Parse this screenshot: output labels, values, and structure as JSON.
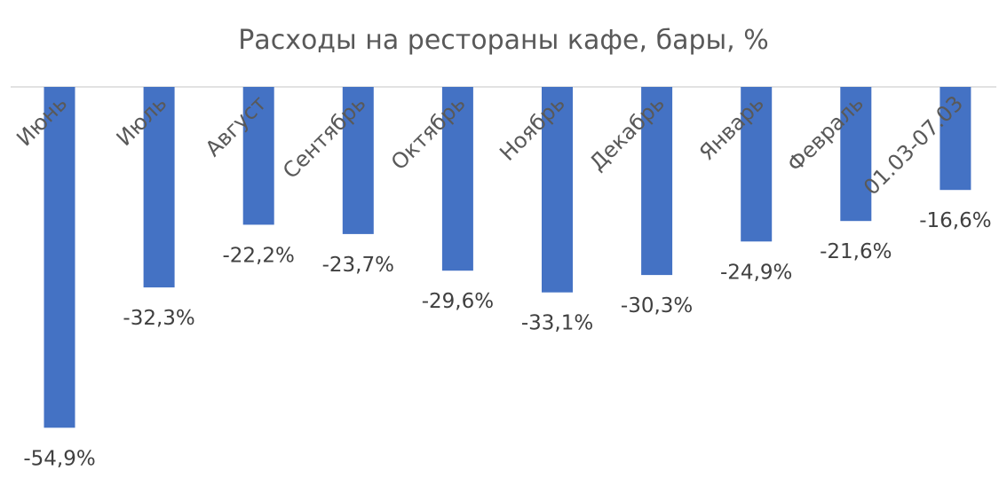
{
  "chart_data": {
    "type": "bar",
    "title": "Расходы на рестораны кафе, бары, %",
    "xlabel": "",
    "ylabel": "",
    "categories": [
      "Июнь",
      "Июль",
      "Август",
      "Сентябрь",
      "Октябрь",
      "Ноябрь",
      "Декабрь",
      "Январь",
      "Февраль",
      "01.03-07.03"
    ],
    "values": [
      -54.9,
      -32.3,
      -22.2,
      -23.7,
      -29.6,
      -33.1,
      -30.3,
      -24.9,
      -21.6,
      -16.6
    ],
    "value_labels": [
      "-54,9%",
      "-32,3%",
      "-22,2%",
      "-23,7%",
      "-29,6%",
      "-33,1%",
      "-30,3%",
      "-24,9%",
      "-21,6%",
      "-16,6%"
    ],
    "ylim": [
      -60,
      0
    ],
    "bar_color": "#4472c4",
    "grid": false,
    "legend": "none"
  }
}
